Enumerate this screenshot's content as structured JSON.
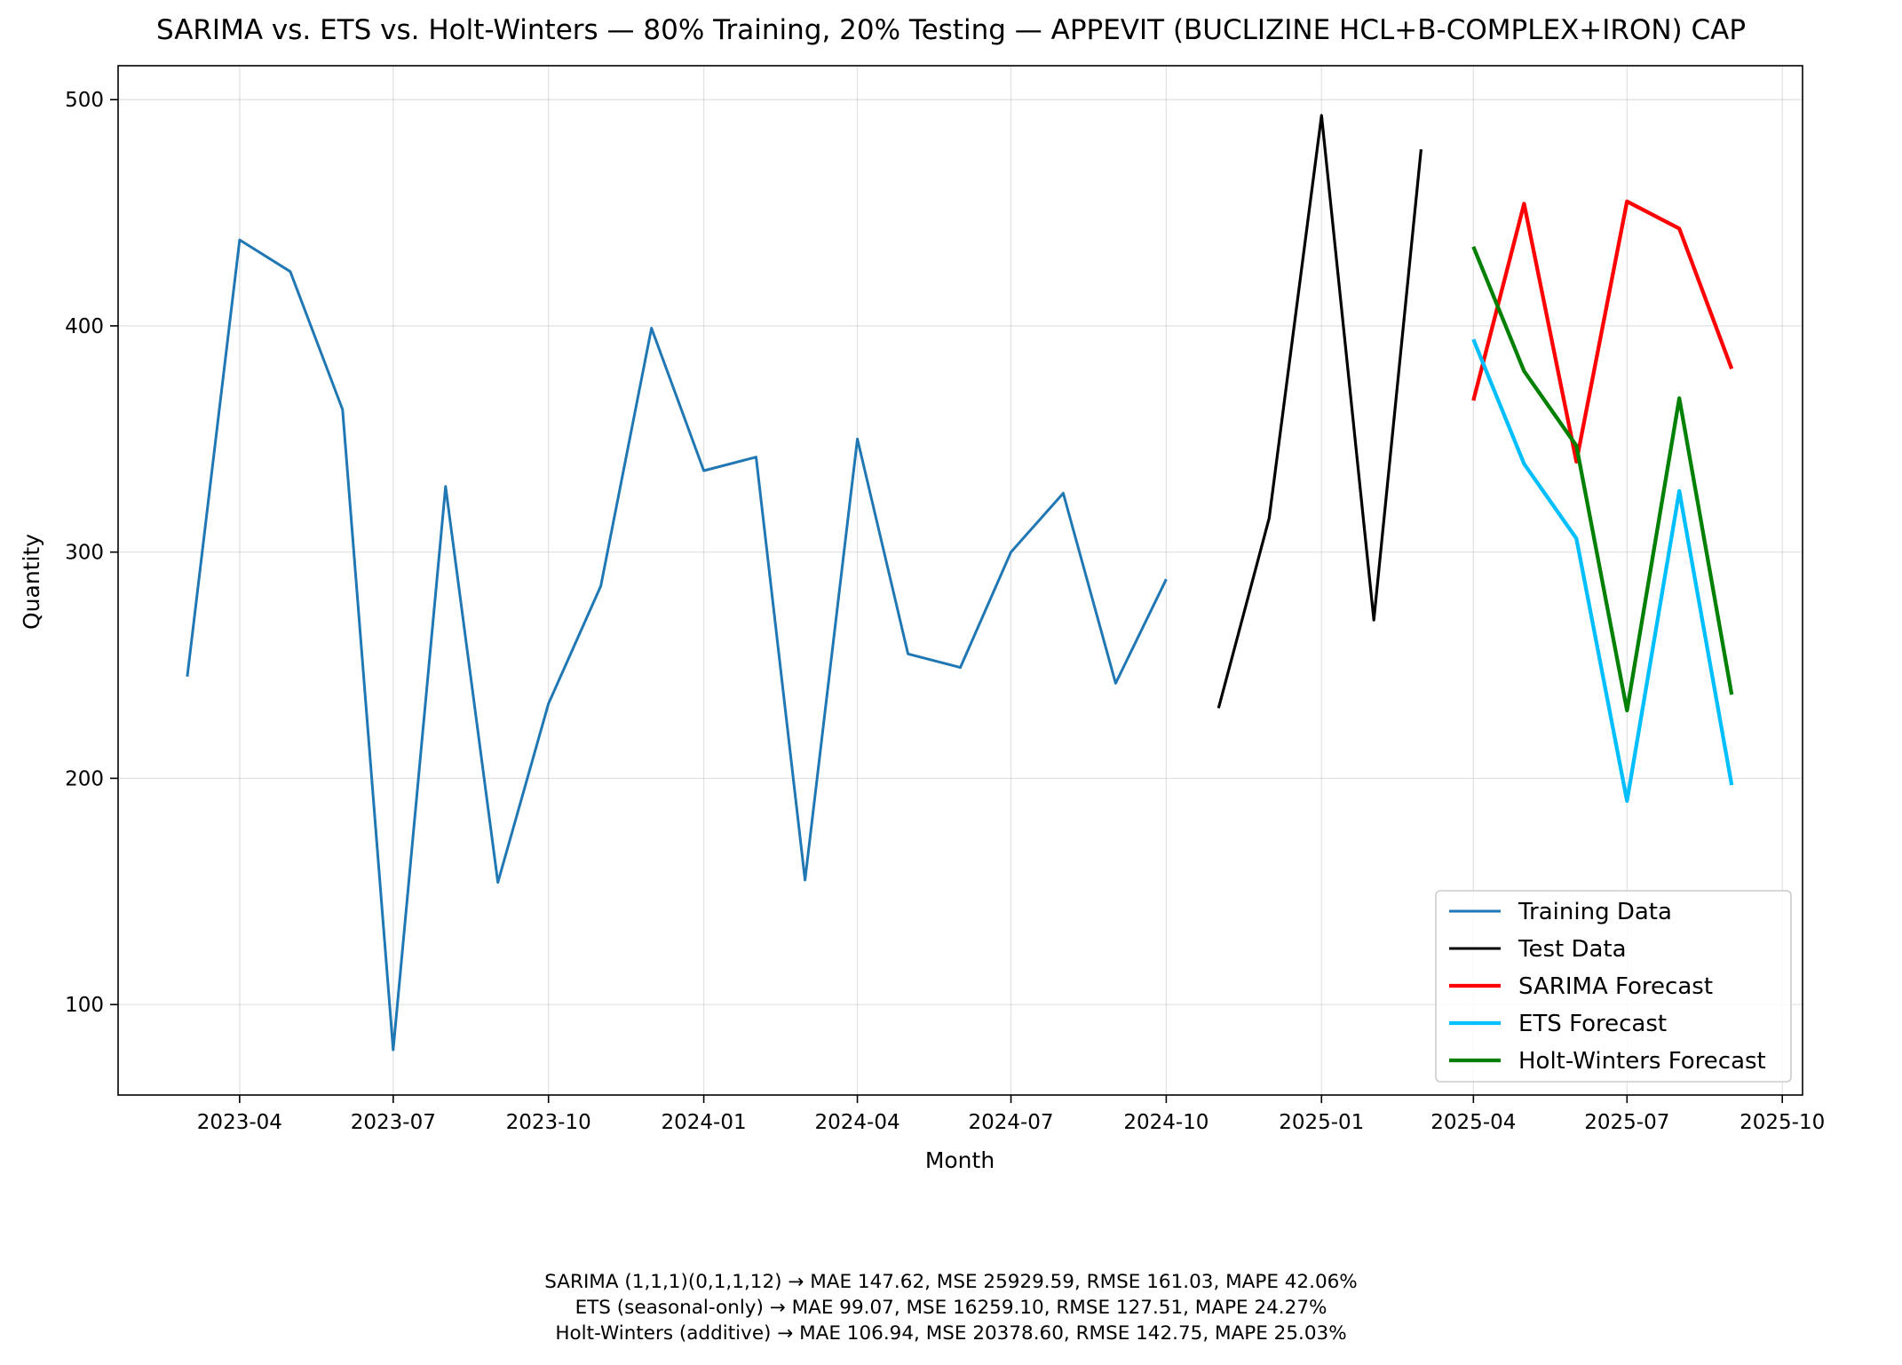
{
  "chart_data": {
    "type": "line",
    "title": "SARIMA vs. ETS vs. Holt-Winters — 80% Training, 20% Testing — APPEVIT (BUCLIZINE HCL+B-COMPLEX+IRON) CAP",
    "xlabel": "Month",
    "ylabel": "Quantity",
    "xlim": [
      "2023-01-19",
      "2025-10-13"
    ],
    "ylim": [
      60,
      515
    ],
    "x_ticks": [
      "2023-04",
      "2023-07",
      "2023-10",
      "2024-01",
      "2024-04",
      "2024-07",
      "2024-10",
      "2025-01",
      "2025-04",
      "2025-07",
      "2025-10"
    ],
    "y_ticks": [
      100,
      200,
      300,
      400,
      500
    ],
    "grid": true,
    "legend_position": "lower-right",
    "series": [
      {
        "name": "Training Data",
        "color": "#1f77b4",
        "x": [
          "2023-03-01",
          "2023-04-01",
          "2023-05-01",
          "2023-06-01",
          "2023-07-01",
          "2023-08-01",
          "2023-09-01",
          "2023-10-01",
          "2023-11-01",
          "2023-12-01",
          "2024-01-01",
          "2024-02-01",
          "2024-03-01",
          "2024-04-01",
          "2024-05-01",
          "2024-06-01",
          "2024-07-01",
          "2024-08-01",
          "2024-09-01",
          "2024-10-01"
        ],
        "values": [
          245,
          438,
          424,
          363,
          80,
          329,
          154,
          233,
          285,
          399,
          336,
          342,
          155,
          350,
          255,
          249,
          300,
          326,
          242,
          288
        ]
      },
      {
        "name": "Test Data",
        "color": "#000000",
        "x": [
          "2024-11-01",
          "2024-12-01",
          "2025-01-01",
          "2025-02-01",
          "2025-03-01"
        ],
        "values": [
          231,
          315,
          493,
          270,
          478
        ]
      },
      {
        "name": "SARIMA Forecast",
        "color": "#ff0000",
        "x": [
          "2025-04-01",
          "2025-05-01",
          "2025-06-01",
          "2025-07-01",
          "2025-08-01",
          "2025-09-01"
        ],
        "values": [
          367,
          454,
          340,
          455,
          443,
          381
        ]
      },
      {
        "name": "ETS Forecast",
        "color": "#00bfff",
        "x": [
          "2025-04-01",
          "2025-05-01",
          "2025-06-01",
          "2025-07-01",
          "2025-08-01",
          "2025-09-01"
        ],
        "values": [
          394,
          339,
          306,
          190,
          327,
          197
        ]
      },
      {
        "name": "Holt-Winters Forecast",
        "color": "#008000",
        "x": [
          "2025-04-01",
          "2025-05-01",
          "2025-06-01",
          "2025-07-01",
          "2025-08-01",
          "2025-09-01"
        ],
        "values": [
          435,
          380,
          347,
          230,
          368,
          237
        ]
      }
    ]
  },
  "metrics": [
    "SARIMA (1,1,1)(0,1,1,12) → MAE 147.62, MSE 25929.59, RMSE 161.03, MAPE 42.06%",
    "ETS (seasonal-only) → MAE 99.07, MSE 16259.10, RMSE 127.51, MAPE 24.27%",
    "Holt-Winters (additive) → MAE 106.94, MSE 20378.60, RMSE 142.75, MAPE 25.03%"
  ]
}
